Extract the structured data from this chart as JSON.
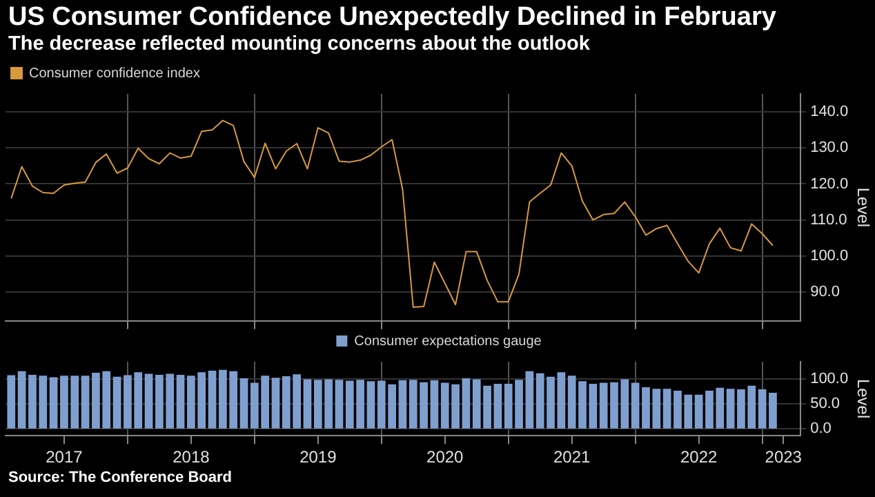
{
  "chart_data": [
    {
      "type": "line",
      "title": "US Consumer Confidence Unexpectedly Declined in February",
      "subtitle": "The decrease reflected mounting concerns about the outlook",
      "ylabel": "Level",
      "legend": "top left",
      "grid": true,
      "tick_labels": "y",
      "x": [
        "2017-02",
        "2017-03",
        "2017-04",
        "2017-05",
        "2017-06",
        "2017-07",
        "2017-08",
        "2017-09",
        "2017-10",
        "2017-11",
        "2017-12",
        "2018-01",
        "2018-02",
        "2018-03",
        "2018-04",
        "2018-05",
        "2018-06",
        "2018-07",
        "2018-08",
        "2018-09",
        "2018-10",
        "2018-11",
        "2018-12",
        "2019-01",
        "2019-02",
        "2019-03",
        "2019-04",
        "2019-05",
        "2019-06",
        "2019-07",
        "2019-08",
        "2019-09",
        "2019-10",
        "2019-11",
        "2019-12",
        "2020-01",
        "2020-02",
        "2020-03",
        "2020-04",
        "2020-05",
        "2020-06",
        "2020-07",
        "2020-08",
        "2020-09",
        "2020-10",
        "2020-11",
        "2020-12",
        "2021-01",
        "2021-02",
        "2021-03",
        "2021-04",
        "2021-05",
        "2021-06",
        "2021-07",
        "2021-08",
        "2021-09",
        "2021-10",
        "2021-11",
        "2021-12",
        "2022-01",
        "2022-02",
        "2022-03",
        "2022-04",
        "2022-05",
        "2022-06",
        "2022-07",
        "2022-08",
        "2022-09",
        "2022-10",
        "2022-11",
        "2022-12",
        "2023-01",
        "2023-02"
      ],
      "xlim": [
        "2017-01-15",
        "2023-04-20"
      ],
      "xticks": [
        {
          "value": "2018-01-01",
          "label": null
        },
        {
          "value": "2019-01-01",
          "label": null
        },
        {
          "value": "2020-01-01",
          "label": null
        },
        {
          "value": "2021-01-01",
          "label": null
        },
        {
          "value": "2022-01-01",
          "label": null
        },
        {
          "value": "2023-01-01",
          "label": null
        }
      ],
      "ylim": [
        82,
        145
      ],
      "yticks": [
        {
          "value": 90,
          "label": "90.0"
        },
        {
          "value": 100,
          "label": "100.0"
        },
        {
          "value": 110,
          "label": "110.0"
        },
        {
          "value": 120,
          "label": "120.0"
        },
        {
          "value": 130,
          "label": "130.0"
        },
        {
          "value": 140,
          "label": "140.0"
        }
      ],
      "series": [
        {
          "name": "Consumer confidence index",
          "color": "#d99a3c",
          "values": [
            116.0,
            124.8,
            119.4,
            117.6,
            117.4,
            119.7,
            120.2,
            120.5,
            126.0,
            128.3,
            123.0,
            124.4,
            129.9,
            127.0,
            125.6,
            128.6,
            127.2,
            127.7,
            134.6,
            135.0,
            137.6,
            136.2,
            126.2,
            121.8,
            131.3,
            124.2,
            129.1,
            131.2,
            124.2,
            135.6,
            134.1,
            126.3,
            126.1,
            126.6,
            128.0,
            130.3,
            132.3,
            118.5,
            85.8,
            86.0,
            98.3,
            92.4,
            86.5,
            101.2,
            101.2,
            93.2,
            87.3,
            87.3,
            95.0,
            115.0,
            117.4,
            119.7,
            128.6,
            125.0,
            115.2,
            110.0,
            111.5,
            111.8,
            115.0,
            110.9,
            105.8,
            107.6,
            108.5,
            103.4,
            98.5,
            95.3,
            103.4,
            107.7,
            102.3,
            101.4,
            108.9,
            106.2,
            102.9
          ]
        }
      ]
    },
    {
      "type": "bar",
      "ylabel": "Level",
      "legend": "top",
      "grid": true,
      "annotations": [
        "Source: The Conference Board"
      ],
      "x": [
        "2017-02",
        "2017-03",
        "2017-04",
        "2017-05",
        "2017-06",
        "2017-07",
        "2017-08",
        "2017-09",
        "2017-10",
        "2017-11",
        "2017-12",
        "2018-01",
        "2018-02",
        "2018-03",
        "2018-04",
        "2018-05",
        "2018-06",
        "2018-07",
        "2018-08",
        "2018-09",
        "2018-10",
        "2018-11",
        "2018-12",
        "2019-01",
        "2019-02",
        "2019-03",
        "2019-04",
        "2019-05",
        "2019-06",
        "2019-07",
        "2019-08",
        "2019-09",
        "2019-10",
        "2019-11",
        "2019-12",
        "2020-01",
        "2020-02",
        "2020-03",
        "2020-04",
        "2020-05",
        "2020-06",
        "2020-07",
        "2020-08",
        "2020-09",
        "2020-10",
        "2020-11",
        "2020-12",
        "2021-01",
        "2021-02",
        "2021-03",
        "2021-04",
        "2021-05",
        "2021-06",
        "2021-07",
        "2021-08",
        "2021-09",
        "2021-10",
        "2021-11",
        "2021-12",
        "2022-01",
        "2022-02",
        "2022-03",
        "2022-04",
        "2022-05",
        "2022-06",
        "2022-07",
        "2022-08",
        "2022-09",
        "2022-10",
        "2022-11",
        "2022-12",
        "2023-01",
        "2023-02"
      ],
      "xlim": [
        "2017-01-15",
        "2023-04-20"
      ],
      "xticks": [
        {
          "value": "2017-07-01",
          "label": "2017"
        },
        {
          "value": "2018-01-01",
          "label": null
        },
        {
          "value": "2018-07-01",
          "label": "2018"
        },
        {
          "value": "2019-01-01",
          "label": null
        },
        {
          "value": "2019-07-01",
          "label": "2019"
        },
        {
          "value": "2020-01-01",
          "label": null
        },
        {
          "value": "2020-07-01",
          "label": "2020"
        },
        {
          "value": "2021-01-01",
          "label": null
        },
        {
          "value": "2021-07-01",
          "label": "2021"
        },
        {
          "value": "2022-01-01",
          "label": null
        },
        {
          "value": "2022-07-01",
          "label": "2022"
        },
        {
          "value": "2023-01-01",
          "label": null
        },
        {
          "value": "2023-03-01",
          "label": "2023"
        }
      ],
      "ylim": [
        -14,
        134
      ],
      "yticks": [
        {
          "value": 0,
          "label": "0.0"
        },
        {
          "value": 50,
          "label": "50.0"
        },
        {
          "value": 100,
          "label": "100.0"
        }
      ],
      "series": [
        {
          "name": "Consumer expectations gauge",
          "color": "#7f9fcf",
          "values": [
            106,
            114,
            107,
            105,
            102,
            105,
            105,
            105,
            111,
            114,
            103,
            106,
            112,
            109,
            107,
            109,
            107,
            105,
            112,
            115,
            117,
            114,
            100,
            91,
            105,
            101,
            104,
            108,
            98,
            97,
            98,
            97,
            95,
            97,
            94,
            95,
            88,
            96,
            97,
            92,
            96,
            91,
            88,
            100,
            98,
            85,
            89,
            89,
            97,
            114,
            110,
            103,
            112,
            105,
            94,
            89,
            91,
            92,
            98,
            91,
            82,
            79,
            79,
            75,
            67,
            67,
            75,
            81,
            79,
            78,
            85,
            78,
            71
          ]
        }
      ]
    }
  ]
}
